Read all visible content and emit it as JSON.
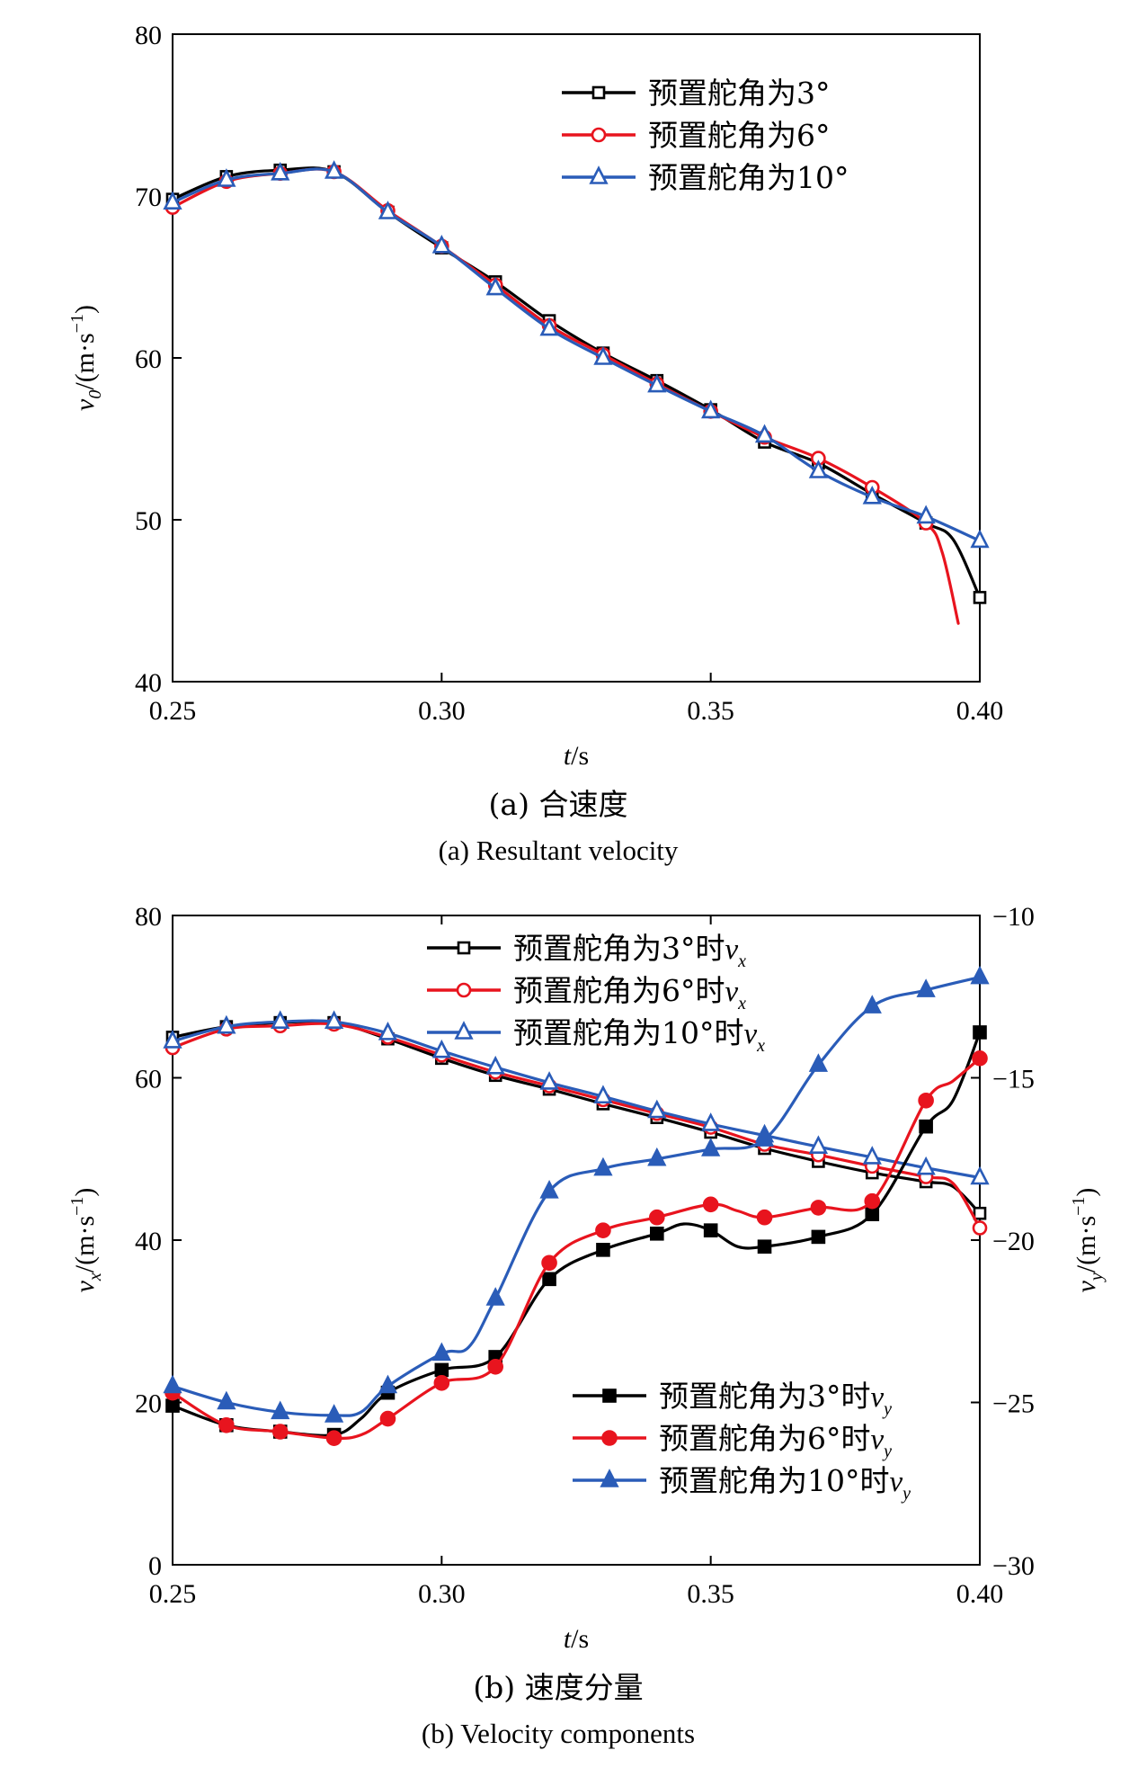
{
  "chart_data": [
    {
      "type": "line",
      "panel": "a",
      "xlabel_italic": "t",
      "xlabel_unit": "/s",
      "ylabel_var": "v",
      "ylabel_sub": "0",
      "ylabel_unit": "/(m·s",
      "ylabel_sup": "−1",
      "ylabel_close": ")",
      "xlim": [
        0.25,
        0.4
      ],
      "ylim": [
        40,
        80
      ],
      "xticks": [
        "0.25",
        "0.30",
        "0.35",
        "0.40"
      ],
      "yticks": [
        "40",
        "50",
        "60",
        "70",
        "80"
      ],
      "caption_zh": "(a) 合速度",
      "caption_en": "(a) Resultant velocity",
      "grid": false,
      "legend_position": "top-right",
      "series": [
        {
          "name": "预置舵角为3°",
          "color": "#000000",
          "marker": "square-open",
          "x": [
            0.25,
            0.26,
            0.27,
            0.28,
            0.29,
            0.3,
            0.31,
            0.32,
            0.33,
            0.34,
            0.35,
            0.36,
            0.37,
            0.38,
            0.39,
            0.395,
            0.4
          ],
          "y": [
            69.8,
            71.2,
            71.6,
            71.5,
            69.0,
            66.8,
            64.7,
            62.3,
            60.3,
            58.6,
            56.8,
            54.8,
            53.5,
            51.6,
            49.8,
            48.8,
            45.2
          ],
          "marker_x": [
            0.25,
            0.26,
            0.27,
            0.28,
            0.29,
            0.3,
            0.31,
            0.32,
            0.33,
            0.34,
            0.35,
            0.36,
            0.37,
            0.38,
            0.39,
            0.4
          ]
        },
        {
          "name": "预置舵角为6°",
          "color": "#e8141e",
          "marker": "circle-open",
          "x": [
            0.25,
            0.26,
            0.27,
            0.28,
            0.29,
            0.3,
            0.31,
            0.32,
            0.33,
            0.34,
            0.35,
            0.36,
            0.37,
            0.38,
            0.39,
            0.393,
            0.396
          ],
          "y": [
            69.3,
            70.9,
            71.4,
            71.5,
            69.1,
            66.9,
            64.5,
            62.0,
            60.2,
            58.4,
            56.7,
            55.1,
            53.8,
            52.0,
            49.8,
            48.0,
            43.6
          ],
          "marker_x": [
            0.25,
            0.26,
            0.27,
            0.28,
            0.29,
            0.3,
            0.31,
            0.32,
            0.33,
            0.34,
            0.35,
            0.36,
            0.37,
            0.38,
            0.39
          ]
        },
        {
          "name": "预置舵角为10°",
          "color": "#2a5cb8",
          "marker": "triangle-open",
          "x": [
            0.25,
            0.26,
            0.27,
            0.28,
            0.29,
            0.3,
            0.31,
            0.32,
            0.33,
            0.34,
            0.35,
            0.36,
            0.37,
            0.38,
            0.39,
            0.4
          ],
          "y": [
            69.6,
            71.0,
            71.4,
            71.5,
            69.0,
            66.9,
            64.3,
            61.8,
            60.0,
            58.3,
            56.7,
            55.2,
            53.0,
            51.4,
            50.2,
            48.7
          ],
          "marker_x": [
            0.25,
            0.26,
            0.27,
            0.28,
            0.29,
            0.3,
            0.31,
            0.32,
            0.33,
            0.34,
            0.35,
            0.36,
            0.37,
            0.38,
            0.39,
            0.4
          ]
        }
      ]
    },
    {
      "type": "line",
      "panel": "b",
      "xlabel_italic": "t",
      "xlabel_unit": "/s",
      "ylabel_var": "v",
      "ylabel_sub": "x",
      "ylabel_unit": "/(m·s",
      "ylabel_sup": "−1",
      "ylabel_close": ")",
      "y2label_var": "v",
      "y2label_sub": "y",
      "y2label_unit": "/(m·s",
      "y2label_sup": "−1",
      "y2label_close": ")",
      "xlim": [
        0.25,
        0.4
      ],
      "ylim": [
        0,
        80
      ],
      "y2lim": [
        -30,
        -10
      ],
      "xticks": [
        "0.25",
        "0.30",
        "0.35",
        "0.40"
      ],
      "yticks": [
        "0",
        "20",
        "40",
        "60",
        "80"
      ],
      "y2ticks": [
        "−30",
        "−25",
        "−20",
        "−15",
        "−10"
      ],
      "caption_zh": "(b) 速度分量",
      "caption_en": "(b) Velocity components",
      "grid": false,
      "legend_position": "top-center / bottom-right",
      "series": [
        {
          "name": "预置舵角为3°时",
          "name_var": "v",
          "name_sub": "x",
          "axis": "left",
          "color": "#000000",
          "marker": "square-open",
          "x": [
            0.25,
            0.26,
            0.27,
            0.28,
            0.29,
            0.3,
            0.31,
            0.32,
            0.33,
            0.34,
            0.35,
            0.36,
            0.37,
            0.38,
            0.39,
            0.395,
            0.4
          ],
          "y": [
            65.0,
            66.3,
            66.8,
            66.8,
            64.8,
            62.4,
            60.3,
            58.6,
            56.8,
            55.1,
            53.3,
            51.3,
            49.7,
            48.3,
            47.2,
            46.6,
            43.3
          ],
          "marker_x": [
            0.25,
            0.26,
            0.27,
            0.28,
            0.29,
            0.3,
            0.31,
            0.32,
            0.33,
            0.34,
            0.35,
            0.36,
            0.37,
            0.38,
            0.39,
            0.4
          ]
        },
        {
          "name": "预置舵角为6°时",
          "name_var": "v",
          "name_sub": "x",
          "axis": "left",
          "color": "#e8141e",
          "marker": "circle-open",
          "x": [
            0.25,
            0.26,
            0.27,
            0.28,
            0.29,
            0.3,
            0.31,
            0.32,
            0.33,
            0.34,
            0.35,
            0.36,
            0.37,
            0.38,
            0.39,
            0.395,
            0.4
          ],
          "y": [
            63.7,
            66.0,
            66.4,
            66.6,
            65.0,
            62.8,
            60.7,
            59.0,
            57.3,
            55.6,
            53.9,
            51.8,
            50.5,
            49.1,
            47.8,
            47.0,
            41.5
          ],
          "marker_x": [
            0.25,
            0.26,
            0.27,
            0.28,
            0.29,
            0.3,
            0.31,
            0.32,
            0.33,
            0.34,
            0.35,
            0.36,
            0.37,
            0.38,
            0.39,
            0.4
          ]
        },
        {
          "name": "预置舵角为10°时",
          "name_var": "v",
          "name_sub": "x",
          "axis": "left",
          "color": "#2a5cb8",
          "marker": "triangle-open",
          "x": [
            0.25,
            0.26,
            0.27,
            0.28,
            0.29,
            0.3,
            0.31,
            0.32,
            0.33,
            0.34,
            0.35,
            0.36,
            0.37,
            0.38,
            0.39,
            0.4
          ],
          "y": [
            64.5,
            66.3,
            66.9,
            66.9,
            65.5,
            63.3,
            61.3,
            59.4,
            57.7,
            55.9,
            54.3,
            52.9,
            51.5,
            50.2,
            48.9,
            47.7
          ],
          "marker_x": [
            0.25,
            0.26,
            0.27,
            0.28,
            0.29,
            0.3,
            0.31,
            0.32,
            0.33,
            0.34,
            0.35,
            0.36,
            0.37,
            0.38,
            0.39,
            0.4
          ]
        },
        {
          "name": "预置舵角为3°时",
          "name_var": "v",
          "name_sub": "y",
          "axis": "right",
          "color": "#000000",
          "marker": "square-filled",
          "x": [
            0.25,
            0.26,
            0.27,
            0.28,
            0.285,
            0.29,
            0.3,
            0.31,
            0.32,
            0.33,
            0.34,
            0.345,
            0.35,
            0.355,
            0.36,
            0.37,
            0.38,
            0.39,
            0.395,
            0.4
          ],
          "y": [
            -25.1,
            -25.7,
            -25.9,
            -26.0,
            -25.5,
            -24.7,
            -24.0,
            -23.6,
            -21.2,
            -20.3,
            -19.8,
            -19.5,
            -19.7,
            -20.2,
            -20.2,
            -19.9,
            -19.2,
            -16.5,
            -15.7,
            -13.6
          ],
          "marker_x": [
            0.25,
            0.26,
            0.27,
            0.28,
            0.29,
            0.3,
            0.31,
            0.32,
            0.33,
            0.34,
            0.35,
            0.36,
            0.37,
            0.38,
            0.39,
            0.4
          ]
        },
        {
          "name": "预置舵角为6°时",
          "name_var": "v",
          "name_sub": "y",
          "axis": "right",
          "color": "#e8141e",
          "marker": "circle-filled",
          "x": [
            0.25,
            0.26,
            0.27,
            0.28,
            0.285,
            0.29,
            0.3,
            0.31,
            0.32,
            0.33,
            0.34,
            0.35,
            0.355,
            0.36,
            0.37,
            0.38,
            0.39,
            0.395,
            0.4
          ],
          "y": [
            -24.7,
            -25.7,
            -25.9,
            -26.1,
            -26.0,
            -25.5,
            -24.4,
            -23.9,
            -20.7,
            -19.7,
            -19.3,
            -18.9,
            -19.1,
            -19.3,
            -19.0,
            -18.8,
            -15.7,
            -15.1,
            -14.4
          ],
          "marker_x": [
            0.25,
            0.26,
            0.27,
            0.28,
            0.29,
            0.3,
            0.31,
            0.32,
            0.33,
            0.34,
            0.35,
            0.36,
            0.37,
            0.38,
            0.39,
            0.4
          ]
        },
        {
          "name": "预置舵角为10°时",
          "name_var": "v",
          "name_sub": "y",
          "axis": "right",
          "color": "#2a5cb8",
          "marker": "triangle-filled",
          "x": [
            0.25,
            0.26,
            0.27,
            0.28,
            0.285,
            0.29,
            0.3,
            0.305,
            0.31,
            0.32,
            0.33,
            0.34,
            0.35,
            0.36,
            0.37,
            0.38,
            0.39,
            0.4
          ],
          "y": [
            -24.5,
            -25.0,
            -25.3,
            -25.4,
            -25.3,
            -24.5,
            -23.5,
            -23.3,
            -21.8,
            -18.5,
            -17.8,
            -17.5,
            -17.2,
            -16.9,
            -14.6,
            -12.8,
            -12.3,
            -11.9
          ],
          "marker_x": [
            0.25,
            0.26,
            0.27,
            0.28,
            0.29,
            0.3,
            0.31,
            0.32,
            0.33,
            0.34,
            0.35,
            0.36,
            0.37,
            0.38,
            0.39,
            0.4
          ]
        }
      ],
      "legend_top_series": [
        0,
        1,
        2
      ],
      "legend_bottom_series": [
        3,
        4,
        5
      ]
    }
  ]
}
